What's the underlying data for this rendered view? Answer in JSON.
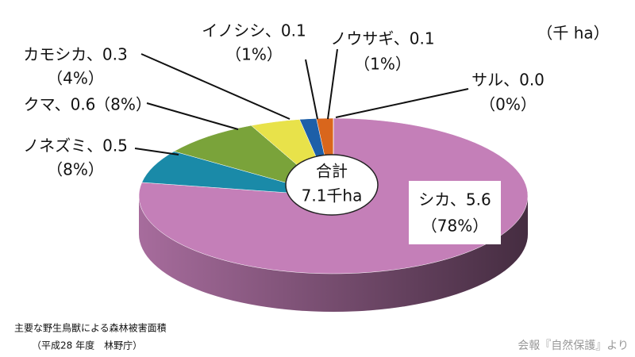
{
  "chart_data": {
    "type": "pie",
    "unit_label": "（千 ha）",
    "total_label": "合計",
    "total_value_label": "7.1千ha",
    "categories": [
      "シカ",
      "ノネズミ",
      "クマ",
      "カモシカ",
      "イノシシ",
      "ノウサギ",
      "サル"
    ],
    "values": [
      5.6,
      0.5,
      0.6,
      0.3,
      0.1,
      0.1,
      0.0
    ],
    "value_labels": [
      "シカ、5.6",
      "ノネズミ、0.5",
      "クマ、0.6",
      "カモシカ、0.3",
      "イノシシ、0.1",
      "ノウサギ、0.1",
      "サル、0.0"
    ],
    "percent_labels": [
      "（78%）",
      "（8%）",
      "（8%）",
      "（4%）",
      "（1%）",
      "（1%）",
      "（0%）"
    ],
    "colors": [
      "#c47fb8",
      "#1a8aa8",
      "#7aa33a",
      "#e8e24a",
      "#1d5fa8",
      "#d9661c",
      "#b03030"
    ],
    "source": "主要な野生鳥獣による森林被害面積",
    "source_sub": "（平成28 年度　林野庁）",
    "credit": "会報『自然保護』より"
  }
}
